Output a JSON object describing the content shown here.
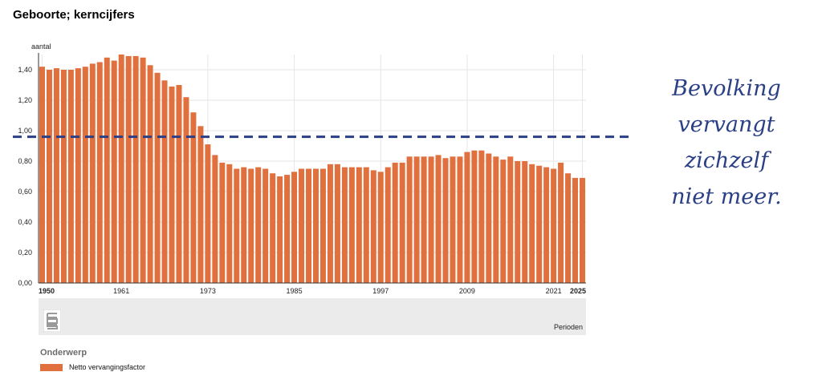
{
  "title": "Geboorte; kerncijfers",
  "annotation": {
    "line1": "Bevolking",
    "line2": "vervangt",
    "line3": "zichzelf",
    "line4": "niet meer."
  },
  "legend": {
    "heading": "Onderwerp",
    "series_label": "Netto vervangingsfactor"
  },
  "colors": {
    "bar": "#e1703f",
    "reference_line": "#2a3f85",
    "annotation_text": "#2a3f85",
    "footer_band": "#ebebeb",
    "grid": "#e6e6e6"
  },
  "logo_icon": "cbs-logo-icon",
  "chart_data": {
    "type": "bar",
    "title": "Geboorte; kerncijfers",
    "ylabel": "aantal",
    "xlabel": "Perioden",
    "ylim": [
      0,
      1.5
    ],
    "yticks": [
      "0,00",
      "0,20",
      "0,40",
      "0,60",
      "0,80",
      "1,00",
      "1,20",
      "1,40"
    ],
    "xticks": [
      "1950",
      "1961",
      "1973",
      "1985",
      "1997",
      "2009",
      "2021",
      "2025"
    ],
    "grid": true,
    "legend_position": "bottom-left",
    "reference_line": 0.96,
    "series": [
      {
        "name": "Netto vervangingsfactor",
        "x": [
          1950,
          1951,
          1952,
          1953,
          1954,
          1955,
          1956,
          1957,
          1958,
          1959,
          1960,
          1961,
          1962,
          1963,
          1964,
          1965,
          1966,
          1967,
          1968,
          1969,
          1970,
          1971,
          1972,
          1973,
          1974,
          1975,
          1976,
          1977,
          1978,
          1979,
          1980,
          1981,
          1982,
          1983,
          1984,
          1985,
          1986,
          1987,
          1988,
          1989,
          1990,
          1991,
          1992,
          1993,
          1994,
          1995,
          1996,
          1997,
          1998,
          1999,
          2000,
          2001,
          2002,
          2003,
          2004,
          2005,
          2006,
          2007,
          2008,
          2009,
          2010,
          2011,
          2012,
          2013,
          2014,
          2015,
          2016,
          2017,
          2018,
          2019,
          2020,
          2021,
          2022,
          2023,
          2024,
          2025
        ],
        "values": [
          1.42,
          1.4,
          1.41,
          1.4,
          1.4,
          1.41,
          1.42,
          1.44,
          1.45,
          1.48,
          1.46,
          1.5,
          1.49,
          1.49,
          1.48,
          1.43,
          1.38,
          1.33,
          1.29,
          1.3,
          1.22,
          1.12,
          1.03,
          0.91,
          0.84,
          0.79,
          0.78,
          0.75,
          0.76,
          0.75,
          0.76,
          0.75,
          0.72,
          0.7,
          0.71,
          0.73,
          0.75,
          0.75,
          0.75,
          0.75,
          0.78,
          0.78,
          0.76,
          0.76,
          0.76,
          0.76,
          0.74,
          0.73,
          0.76,
          0.79,
          0.79,
          0.83,
          0.83,
          0.83,
          0.83,
          0.84,
          0.82,
          0.83,
          0.83,
          0.86,
          0.87,
          0.87,
          0.85,
          0.83,
          0.81,
          0.83,
          0.8,
          0.8,
          0.78,
          0.77,
          0.76,
          0.75,
          0.79,
          0.72,
          0.69,
          0.69
        ]
      }
    ]
  }
}
